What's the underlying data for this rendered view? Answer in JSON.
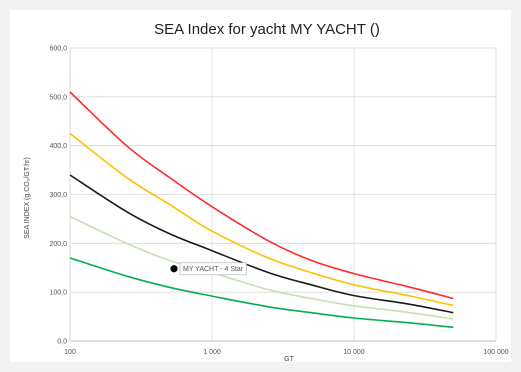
{
  "chart_data": {
    "type": "line",
    "title": "SEA Index for yacht MY YACHT ()",
    "xlabel": "GT",
    "ylabel": "SEA INDEX (g.CO₂/GT.hr)",
    "x_scale": "log",
    "xlim": [
      100,
      100000
    ],
    "ylim": [
      0,
      600
    ],
    "x_ticks": [
      100,
      1000,
      10000,
      100000
    ],
    "x_tick_labels": [
      "100",
      "1 000",
      "10 000",
      "100 000"
    ],
    "y_ticks": [
      0,
      100,
      200,
      300,
      400,
      500,
      600
    ],
    "y_tick_labels": [
      "0,0",
      "100,0",
      "200,0",
      "300,0",
      "400,0",
      "500,0",
      "600,0"
    ],
    "grid": true,
    "series": [
      {
        "color": "#ff2a2a",
        "x": [
          100,
          250,
          500,
          1000,
          2500,
          5000,
          10000,
          25000,
          50000
        ],
        "y": [
          510,
          400,
          335,
          275,
          205,
          165,
          138,
          110,
          87
        ]
      },
      {
        "color": "#ffc000",
        "x": [
          100,
          250,
          500,
          1000,
          2500,
          5000,
          10000,
          25000,
          50000
        ],
        "y": [
          425,
          335,
          280,
          225,
          170,
          140,
          115,
          92,
          73
        ]
      },
      {
        "color": "#1a1a1a",
        "x": [
          100,
          250,
          500,
          1000,
          2500,
          5000,
          10000,
          25000,
          50000
        ],
        "y": [
          340,
          265,
          220,
          185,
          140,
          115,
          93,
          75,
          58
        ]
      },
      {
        "color": "#c5e0b4",
        "x": [
          100,
          250,
          500,
          1000,
          2500,
          5000,
          10000,
          25000,
          50000
        ],
        "y": [
          255,
          200,
          165,
          140,
          105,
          87,
          72,
          58,
          45
        ]
      },
      {
        "color": "#00b050",
        "x": [
          100,
          250,
          500,
          1000,
          2500,
          5000,
          10000,
          25000,
          50000
        ],
        "y": [
          170,
          133,
          110,
          92,
          70,
          58,
          47,
          37,
          28
        ]
      }
    ],
    "points": [
      {
        "label": "MY YACHT - 4 Star",
        "x": 540,
        "y": 148,
        "color": "#000000"
      }
    ]
  }
}
